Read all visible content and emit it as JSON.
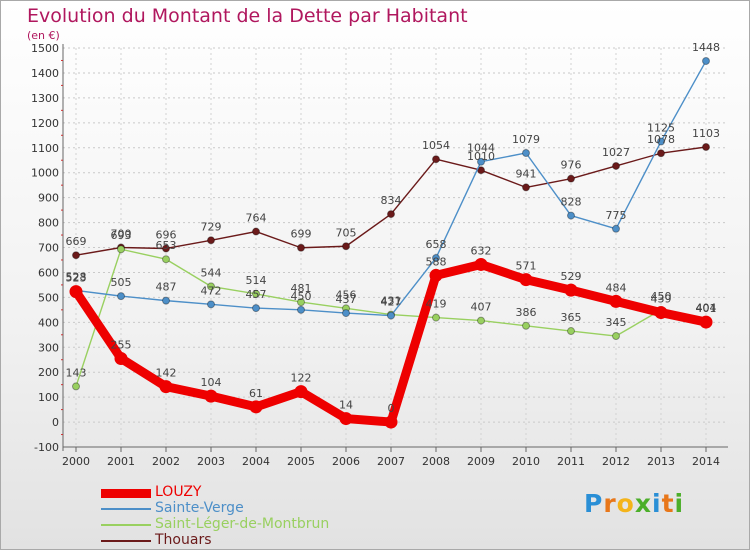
{
  "header": {
    "title": "Evolution du Montant de la Dette par Habitant",
    "subtitle": "(en €)"
  },
  "logo": {
    "letters": [
      "P",
      "r",
      "o",
      "x",
      "i",
      "t",
      "i"
    ],
    "colors": [
      "#2a8fd6",
      "#e8771a",
      "#f4b41a",
      "#4caf2a",
      "#2a8fd6",
      "#e8771a",
      "#4caf2a"
    ]
  },
  "chart_data": {
    "type": "line",
    "title": "Evolution du Montant de la Dette par Habitant",
    "ylabel": "(en €)",
    "x": [
      "2000",
      "2001",
      "2002",
      "2003",
      "2004",
      "2005",
      "2006",
      "2007",
      "2008",
      "2009",
      "2010",
      "2011",
      "2012",
      "2013",
      "2014"
    ],
    "ylim": [
      -100,
      1500
    ],
    "yticks": [
      -100,
      0,
      100,
      200,
      300,
      400,
      500,
      600,
      700,
      800,
      900,
      1000,
      1100,
      1200,
      1300,
      1400,
      1500
    ],
    "grid": true,
    "legend_position": "bottom-left",
    "series": [
      {
        "name": "Thouars",
        "color": "#6b1a1a",
        "values": [
          669,
          700,
          696,
          729,
          764,
          699,
          705,
          834,
          1054,
          1010,
          941,
          976,
          1027,
          1078,
          1103
        ],
        "labels": [
          "669",
          "700",
          "696",
          "729",
          "764",
          "699",
          "705",
          "834",
          "1054",
          "1010",
          "941",
          "976",
          "1027",
          "1078",
          "1103"
        ]
      },
      {
        "name": "Saint-Léger-de-Montbrun",
        "color": "#99d060",
        "values": [
          143,
          693,
          653,
          544,
          514,
          481,
          456,
          431,
          419,
          407,
          386,
          365,
          345,
          450,
          404
        ],
        "labels": [
          "143",
          "693",
          "653",
          "544",
          "514",
          "481",
          "456",
          "431",
          "419",
          "407",
          "386",
          "365",
          "345",
          "450",
          "404"
        ]
      },
      {
        "name": "Sainte-Verge",
        "color": "#4d8fc8",
        "values": [
          528,
          505,
          487,
          472,
          457,
          450,
          437,
          427,
          658,
          1044,
          1079,
          828,
          775,
          1125,
          1448
        ],
        "labels": [
          "528",
          "505",
          "487",
          "472",
          "457",
          "450",
          "437",
          "427",
          "658",
          "1044",
          "1079",
          "828",
          "775",
          "1125",
          "1448"
        ]
      },
      {
        "name": "LOUZY",
        "color": "#ee0000",
        "values": [
          523,
          255,
          142,
          104,
          61,
          122,
          14,
          0,
          588,
          632,
          571,
          529,
          484,
          439,
          401
        ],
        "labels": [
          "523",
          "255",
          "142",
          "104",
          "61",
          "122",
          "14",
          "0",
          "588",
          "632",
          "571",
          "529",
          "484",
          "439",
          "401"
        ]
      }
    ],
    "legend_order": [
      "LOUZY",
      "Sainte-Verge",
      "Saint-Léger-de-Montbrun",
      "Thouars"
    ]
  }
}
